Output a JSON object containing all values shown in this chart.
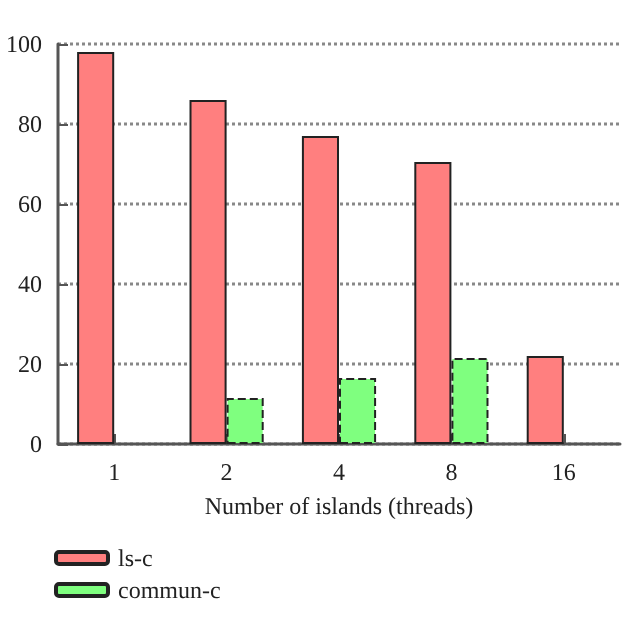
{
  "chart_data": {
    "type": "bar",
    "xlabel": "Number of islands (threads)",
    "categories": [
      "1",
      "2",
      "4",
      "8",
      "16"
    ],
    "series": [
      {
        "name": "ls-c",
        "color": "#ff7f7f",
        "values": [
          98,
          86,
          77,
          70.5,
          22
        ],
        "line_style": "solid"
      },
      {
        "name": "commun-c",
        "color": "#7fff7f",
        "values": [
          null,
          11.5,
          16.5,
          21.5,
          null
        ],
        "line_style": "dashed"
      }
    ],
    "ylim": [
      0,
      100
    ],
    "yticks": [
      0,
      20,
      40,
      60,
      80,
      100
    ],
    "grid": "y",
    "legend": "bottom left"
  }
}
